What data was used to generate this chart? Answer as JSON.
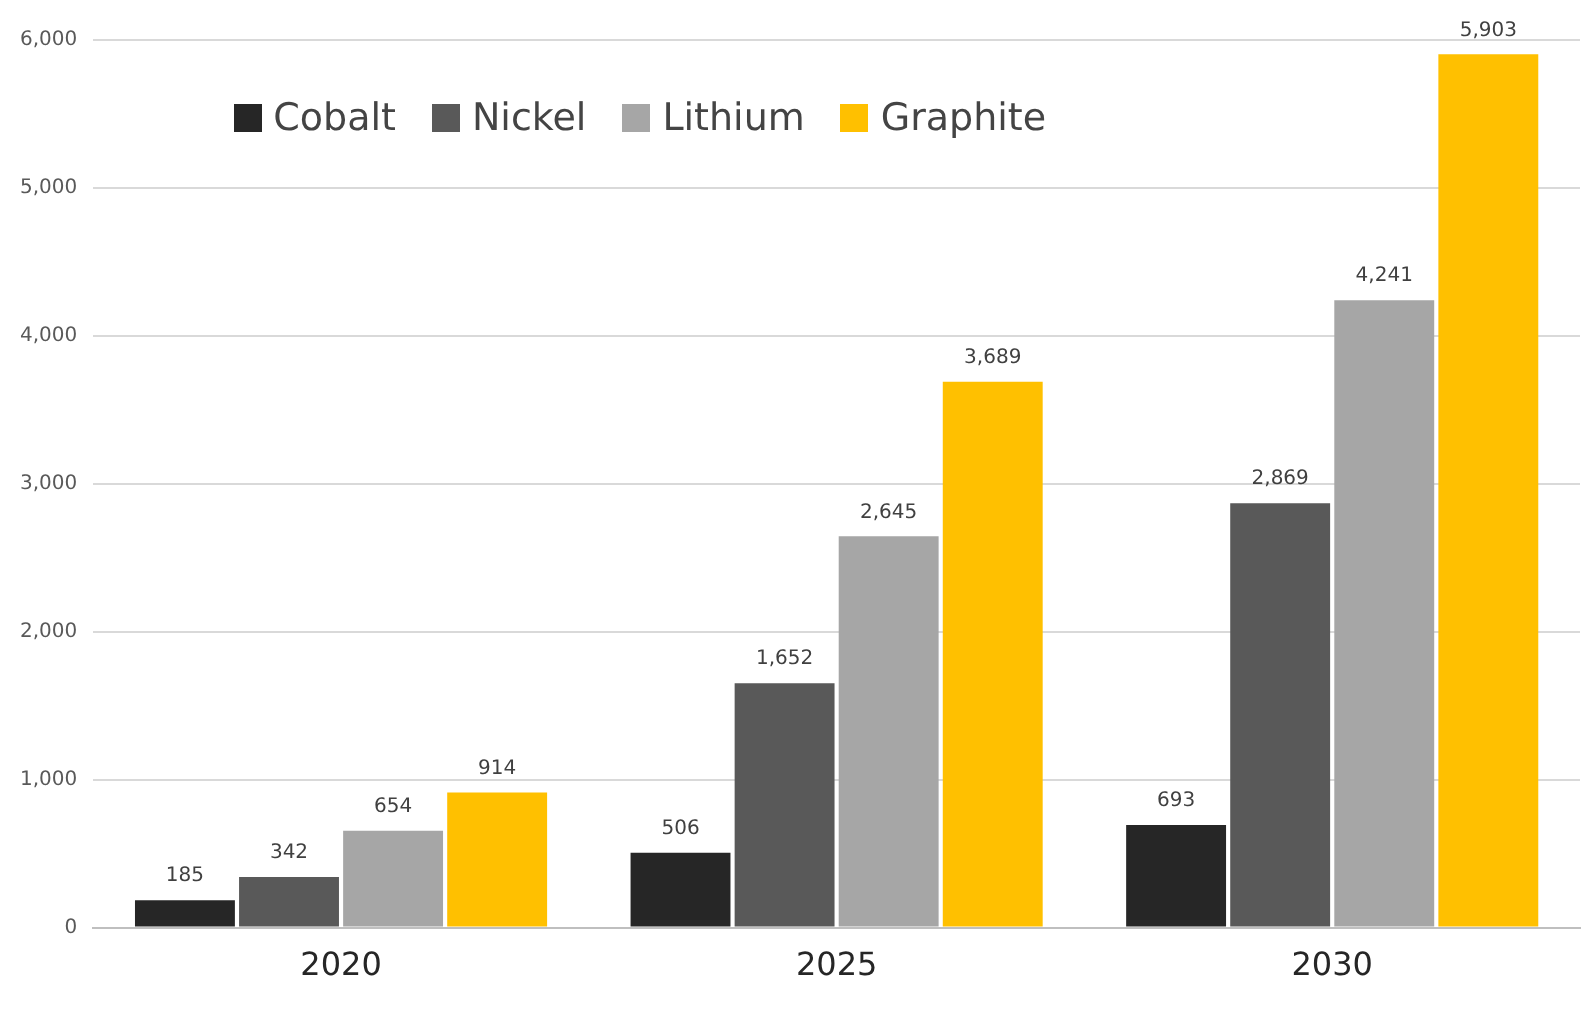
{
  "chart_data": {
    "type": "bar",
    "categories": [
      "2020",
      "2025",
      "2030"
    ],
    "series": [
      {
        "name": "Cobalt",
        "color": "#262626",
        "values": [
          185,
          506,
          693
        ],
        "value_labels": [
          "185",
          "506",
          "693"
        ]
      },
      {
        "name": "Nickel",
        "color": "#595959",
        "values": [
          342,
          1652,
          2869
        ],
        "value_labels": [
          "342",
          "1,652",
          "2,869"
        ]
      },
      {
        "name": "Lithium",
        "color": "#a6a6a6",
        "values": [
          654,
          2645,
          4241
        ],
        "value_labels": [
          "654",
          "2,645",
          "4,241"
        ]
      },
      {
        "name": "Graphite",
        "color": "#ffc000",
        "values": [
          914,
          3689,
          5903
        ],
        "value_labels": [
          "914",
          "3,689",
          "5,903"
        ]
      }
    ],
    "ylim": [
      0,
      6000
    ],
    "yticks": [
      {
        "value": 0,
        "label": "0"
      },
      {
        "value": 1000,
        "label": "1,000"
      },
      {
        "value": 2000,
        "label": "2,000"
      },
      {
        "value": 3000,
        "label": "3,000"
      },
      {
        "value": 4000,
        "label": "4,000"
      },
      {
        "value": 5000,
        "label": "5,000"
      },
      {
        "value": 6000,
        "label": "6,000"
      }
    ],
    "grid": "y",
    "legend": "top left"
  }
}
